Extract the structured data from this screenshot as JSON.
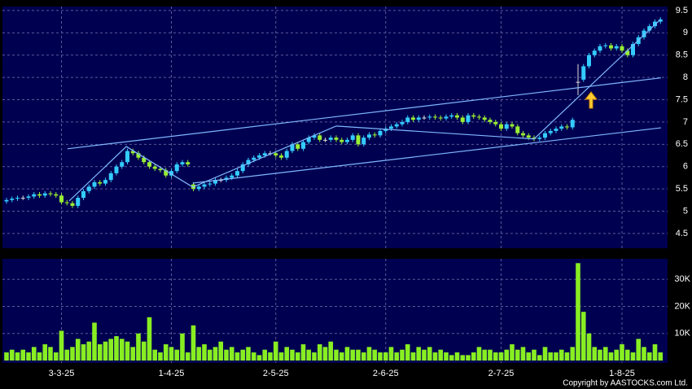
{
  "chart_data": {
    "type": "candlestick",
    "categories": [
      null,
      null,
      null,
      null,
      null,
      null,
      null,
      null,
      null,
      null,
      "3-3-25",
      null,
      null,
      null,
      null,
      null,
      null,
      null,
      null,
      null,
      null,
      null,
      null,
      null,
      null,
      null,
      null,
      null,
      null,
      null,
      "1-4-25",
      null,
      null,
      null,
      null,
      null,
      null,
      null,
      null,
      null,
      null,
      null,
      null,
      null,
      null,
      null,
      null,
      null,
      null,
      "2-5-25",
      null,
      null,
      null,
      null,
      null,
      null,
      null,
      null,
      null,
      null,
      null,
      null,
      null,
      null,
      null,
      null,
      null,
      null,
      null,
      "2-6-25",
      null,
      null,
      null,
      null,
      null,
      null,
      null,
      null,
      null,
      null,
      null,
      null,
      null,
      null,
      null,
      null,
      null,
      null,
      null,
      null,
      "2-7-25",
      null,
      null,
      null,
      null,
      null,
      null,
      null,
      null,
      null,
      null,
      null,
      null,
      null,
      null,
      null,
      null,
      null,
      null,
      null,
      null,
      null,
      "1-8-25",
      null,
      null,
      null,
      null,
      null,
      null,
      null
    ],
    "open": [
      5.22,
      5.25,
      5.28,
      5.3,
      5.3,
      5.33,
      5.38,
      5.35,
      5.4,
      5.38,
      5.35,
      5.2,
      5.18,
      5.12,
      5.3,
      5.45,
      5.55,
      5.65,
      5.62,
      5.7,
      5.85,
      6.0,
      6.1,
      6.35,
      6.3,
      6.2,
      6.1,
      6.0,
      5.95,
      5.92,
      5.8,
      5.9,
      6.05,
      6.1,
      5.6,
      5.5,
      5.55,
      5.6,
      5.62,
      5.7,
      5.7,
      5.75,
      5.8,
      5.9,
      6.05,
      6.15,
      6.2,
      6.25,
      6.3,
      6.3,
      6.25,
      6.2,
      6.35,
      6.5,
      6.4,
      6.55,
      6.65,
      6.7,
      6.6,
      6.6,
      6.65,
      6.6,
      6.55,
      6.6,
      6.7,
      6.5,
      6.65,
      6.72,
      6.7,
      6.8,
      6.85,
      6.9,
      6.95,
      7.0,
      7.1,
      7.05,
      7.1,
      7.1,
      7.12,
      7.1,
      7.08,
      7.12,
      7.15,
      7.1,
      7.0,
      7.15,
      7.12,
      7.1,
      7.05,
      7.0,
      6.95,
      6.85,
      6.95,
      6.9,
      6.75,
      6.7,
      6.65,
      6.62,
      6.65,
      6.75,
      6.8,
      6.85,
      6.9,
      6.88,
      7.9,
      7.95,
      8.25,
      8.5,
      8.6,
      8.7,
      8.72,
      8.65,
      8.7,
      8.6,
      8.5,
      8.75,
      8.9,
      9.05,
      9.15,
      9.25
    ],
    "high": [
      5.3,
      5.33,
      5.35,
      5.35,
      5.38,
      5.43,
      5.43,
      5.45,
      5.45,
      5.43,
      5.4,
      5.25,
      5.23,
      5.35,
      5.5,
      5.6,
      5.7,
      5.7,
      5.75,
      5.9,
      6.05,
      6.15,
      6.4,
      6.4,
      6.35,
      6.25,
      6.15,
      6.05,
      6.0,
      5.97,
      5.95,
      6.1,
      6.15,
      6.15,
      5.65,
      5.6,
      5.65,
      5.67,
      5.75,
      5.75,
      5.8,
      5.85,
      5.95,
      6.1,
      6.2,
      6.25,
      6.3,
      6.35,
      6.35,
      6.35,
      6.3,
      6.4,
      6.55,
      6.55,
      6.6,
      6.7,
      6.75,
      6.75,
      6.65,
      6.7,
      6.7,
      6.65,
      6.65,
      6.75,
      6.75,
      6.7,
      6.77,
      6.77,
      6.85,
      6.9,
      6.95,
      7.0,
      7.05,
      7.15,
      7.15,
      7.15,
      7.15,
      7.17,
      7.17,
      7.15,
      7.17,
      7.2,
      7.2,
      7.15,
      7.2,
      7.2,
      7.17,
      7.15,
      7.1,
      7.05,
      7.0,
      7.0,
      7.0,
      6.95,
      6.8,
      6.75,
      6.7,
      6.7,
      6.8,
      6.85,
      6.9,
      6.95,
      6.95,
      7.1,
      8.3,
      8.3,
      8.55,
      8.65,
      8.75,
      8.77,
      8.77,
      8.75,
      8.75,
      8.65,
      8.8,
      8.95,
      9.1,
      9.2,
      9.3,
      9.35
    ],
    "low": [
      5.17,
      5.2,
      5.23,
      5.25,
      5.25,
      5.28,
      5.3,
      5.3,
      5.33,
      5.3,
      5.15,
      5.13,
      5.07,
      5.07,
      5.25,
      5.4,
      5.5,
      5.57,
      5.57,
      5.65,
      5.8,
      5.95,
      6.05,
      6.25,
      6.15,
      6.05,
      5.95,
      5.9,
      5.87,
      5.75,
      5.75,
      5.85,
      6.0,
      6.0,
      5.45,
      5.45,
      5.5,
      5.55,
      5.57,
      5.65,
      5.65,
      5.7,
      5.75,
      5.85,
      6.0,
      6.1,
      6.15,
      6.2,
      6.25,
      6.2,
      6.15,
      6.15,
      6.3,
      6.35,
      6.35,
      6.5,
      6.6,
      6.55,
      6.55,
      6.55,
      6.55,
      6.5,
      6.5,
      6.55,
      6.45,
      6.45,
      6.6,
      6.65,
      6.65,
      6.75,
      6.8,
      6.85,
      6.9,
      6.95,
      7.0,
      7.0,
      7.05,
      7.05,
      7.05,
      7.03,
      7.03,
      7.07,
      7.05,
      6.95,
      6.95,
      7.07,
      7.05,
      7.0,
      6.95,
      6.9,
      6.8,
      6.8,
      6.85,
      6.7,
      6.65,
      6.6,
      6.57,
      6.57,
      6.6,
      6.7,
      6.75,
      6.8,
      6.83,
      6.83,
      7.6,
      7.9,
      8.2,
      8.45,
      8.55,
      8.65,
      8.6,
      8.6,
      8.55,
      8.45,
      8.45,
      8.7,
      8.85,
      9.0,
      9.1,
      9.2
    ],
    "close": [
      5.25,
      5.28,
      5.3,
      5.3,
      5.33,
      5.38,
      5.35,
      5.4,
      5.38,
      5.35,
      5.2,
      5.18,
      5.12,
      5.3,
      5.45,
      5.55,
      5.65,
      5.62,
      5.7,
      5.85,
      6.0,
      6.1,
      6.35,
      6.3,
      6.2,
      6.1,
      6.0,
      5.95,
      5.92,
      5.8,
      5.9,
      6.05,
      6.1,
      6.05,
      5.5,
      5.55,
      5.6,
      5.62,
      5.7,
      5.7,
      5.75,
      5.8,
      5.9,
      6.05,
      6.15,
      6.2,
      6.25,
      6.3,
      6.3,
      6.25,
      6.2,
      6.35,
      6.5,
      6.4,
      6.55,
      6.65,
      6.7,
      6.6,
      6.6,
      6.65,
      6.6,
      6.55,
      6.6,
      6.7,
      6.5,
      6.65,
      6.72,
      6.7,
      6.8,
      6.85,
      6.9,
      6.95,
      7.0,
      7.1,
      7.05,
      7.1,
      7.1,
      7.12,
      7.1,
      7.08,
      7.12,
      7.15,
      7.1,
      7.0,
      7.15,
      7.12,
      7.1,
      7.05,
      7.0,
      6.95,
      6.85,
      6.95,
      6.9,
      6.75,
      6.7,
      6.65,
      6.62,
      6.65,
      6.75,
      6.8,
      6.85,
      6.9,
      6.88,
      7.05,
      7.9,
      8.25,
      8.5,
      8.6,
      8.7,
      8.72,
      8.65,
      8.7,
      8.6,
      8.5,
      8.75,
      8.9,
      9.05,
      9.15,
      9.25,
      9.3
    ],
    "up_color": "#33ccff",
    "down_color": "#99ee33",
    "flat_color": "#dddddd",
    "ylim": [
      4.17,
      9.59
    ],
    "yticks": [
      4.5,
      5,
      5.5,
      6,
      6.5,
      7,
      7.5,
      8,
      8.5,
      9,
      9.5
    ],
    "grid": true,
    "trendlines": [
      {
        "x": [
          11.1,
          119.1
        ],
        "y": [
          6.4,
          7.99
        ]
      },
      {
        "x": [
          33.9,
          119.1
        ],
        "y": [
          5.63,
          6.87
        ]
      },
      {
        "x": [
          11.4,
          21.8,
          33.9,
          60,
          96,
          119
        ],
        "y": [
          5.23,
          6.45,
          5.54,
          6.91,
          6.62,
          9.3
        ]
      }
    ],
    "trendline_color": "#7fb8ff",
    "volume": {
      "type": "bar",
      "color": "#88ee22",
      "values": [
        3000,
        4000,
        3000,
        4000,
        3000,
        5000,
        3000,
        6000,
        5000,
        3000,
        11000,
        4000,
        5000,
        8000,
        6000,
        7000,
        14000,
        6000,
        7000,
        8000,
        9000,
        8000,
        7000,
        5000,
        10000,
        7000,
        16000,
        4000,
        3000,
        6000,
        5000,
        4000,
        10000,
        3000,
        13000,
        5000,
        6000,
        4000,
        5000,
        7000,
        4000,
        5000,
        3000,
        4000,
        5000,
        3000,
        2000,
        4000,
        3000,
        7000,
        3000,
        5000,
        4000,
        3000,
        6000,
        4000,
        3000,
        6000,
        5000,
        7000,
        4000,
        3000,
        5000,
        4000,
        4000,
        3000,
        5000,
        4000,
        3000,
        3000,
        5000,
        3000,
        4000,
        6000,
        3000,
        5000,
        4000,
        5000,
        3000,
        4000,
        3000,
        2000,
        3000,
        2000,
        2000,
        3000,
        5000,
        4000,
        4000,
        3000,
        3000,
        4000,
        6000,
        4000,
        5000,
        3000,
        4000,
        2000,
        5000,
        3000,
        3000,
        4000,
        3000,
        5000,
        36000,
        18000,
        10000,
        5000,
        4000,
        5000,
        3000,
        4000,
        6000,
        4000,
        3000,
        8000,
        5000,
        3000,
        6000,
        3000
      ],
      "ylim": [
        0,
        37600
      ],
      "yticks": [
        {
          "value": 10000,
          "label": "10K"
        },
        {
          "value": 20000,
          "label": "20K"
        },
        {
          "value": 30000,
          "label": "30K"
        }
      ]
    },
    "credit": "Copyright by AASTOCKS.com Ltd."
  }
}
